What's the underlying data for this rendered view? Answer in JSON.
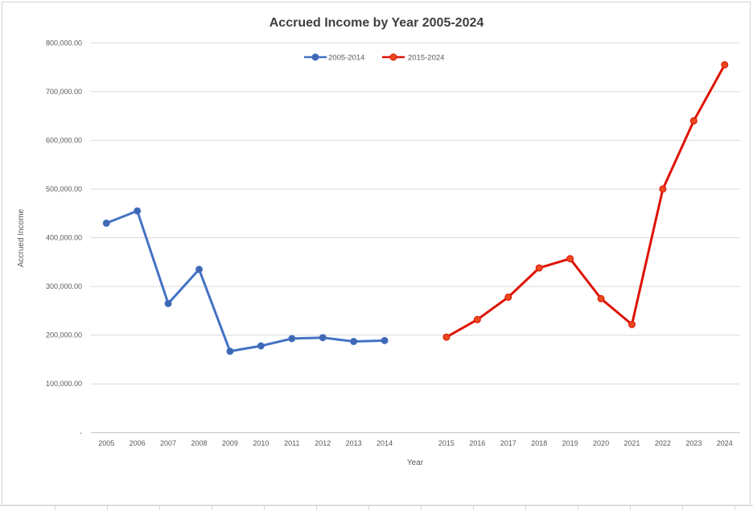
{
  "chart_data": {
    "type": "line",
    "title": "Accrued Income by Year 2005-2024",
    "xlabel": "Year",
    "ylabel": "Accrued Income",
    "ylim": [
      0,
      800000
    ],
    "ytick_step": 100000,
    "ytick_labels": [
      "-",
      "100,000.00",
      "200,000.00",
      "300,000.00",
      "400,000.00",
      "500,000.00",
      "600,000.00",
      "700,000.00",
      "800,000.00"
    ],
    "categories": [
      "2005",
      "2006",
      "2007",
      "2008",
      "2009",
      "2010",
      "2011",
      "2012",
      "2013",
      "2014",
      "2015",
      "2016",
      "2017",
      "2018",
      "2019",
      "2020",
      "2021",
      "2022",
      "2023",
      "2024"
    ],
    "category_gap_after": "2014",
    "grid": true,
    "legend_position": "top-center",
    "colors": {
      "gridline": "#D9D9D9",
      "axis_line": "#BFBFBF",
      "text": "#595959",
      "title_text": "#3F3F3F",
      "worksheet_line": "#D4D4D4"
    },
    "series": [
      {
        "name": "2005-2014",
        "color": "#4472C4",
        "marker_color": "#3F68B4",
        "values": [
          430000,
          455000,
          265000,
          335000,
          167000,
          178000,
          193000,
          195000,
          187000,
          189000
        ]
      },
      {
        "name": "2015-2024",
        "color": "#DE1205",
        "marker_color": "#EA491D",
        "values": [
          196000,
          232000,
          278000,
          338000,
          357000,
          275000,
          222000,
          500000,
          640000,
          755000
        ]
      }
    ]
  }
}
